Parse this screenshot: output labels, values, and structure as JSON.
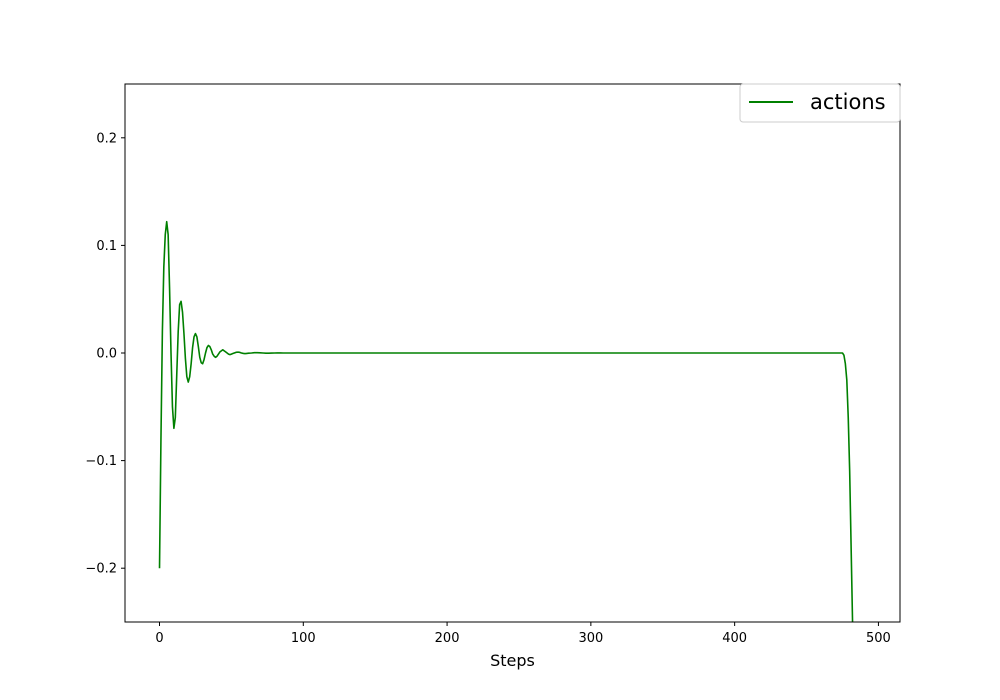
{
  "chart_data": {
    "type": "line",
    "xlabel": "Steps",
    "ylabel": "",
    "xlim": [
      -24,
      515
    ],
    "ylim": [
      -0.25,
      0.25
    ],
    "x_ticks": [
      0,
      100,
      200,
      300,
      400,
      500
    ],
    "x_tick_labels": [
      "0",
      "100",
      "200",
      "300",
      "400",
      "500"
    ],
    "y_ticks": [
      -0.2,
      -0.1,
      0.0,
      0.1,
      0.2
    ],
    "y_tick_labels": [
      "−0.2",
      "−0.1",
      "0.0",
      "0.1",
      "0.2"
    ],
    "grid": false,
    "legend_placement": "top-right",
    "series": [
      {
        "name": "actions",
        "color": "#008000",
        "x": [
          0,
          1,
          2,
          3,
          4,
          5,
          6,
          7,
          8,
          9,
          10,
          11,
          12,
          13,
          14,
          15,
          16,
          17,
          18,
          19,
          20,
          21,
          22,
          23,
          24,
          25,
          26,
          27,
          28,
          29,
          30,
          31,
          32,
          33,
          34,
          35,
          36,
          37,
          38,
          39,
          40,
          41,
          42,
          43,
          44,
          45,
          46,
          47,
          48,
          49,
          50,
          51,
          52,
          53,
          54,
          55,
          56,
          57,
          58,
          59,
          60,
          62,
          64,
          66,
          68,
          70,
          72,
          74,
          76,
          78,
          80,
          82,
          84,
          86,
          88,
          90,
          95,
          100,
          120,
          150,
          200,
          250,
          300,
          350,
          400,
          450,
          470,
          475,
          476,
          477,
          478,
          479,
          480,
          481,
          482,
          483
        ],
        "y": [
          -0.2,
          -0.08,
          0.02,
          0.08,
          0.11,
          0.122,
          0.11,
          0.06,
          0.0,
          -0.05,
          -0.07,
          -0.06,
          -0.02,
          0.02,
          0.045,
          0.048,
          0.038,
          0.018,
          -0.005,
          -0.022,
          -0.027,
          -0.022,
          -0.01,
          0.005,
          0.015,
          0.018,
          0.015,
          0.006,
          -0.004,
          -0.009,
          -0.01,
          -0.006,
          0.0,
          0.005,
          0.007,
          0.006,
          0.003,
          -0.001,
          -0.003,
          -0.004,
          -0.003,
          -0.001,
          0.001,
          0.002,
          0.003,
          0.002,
          0.001,
          0.0,
          -0.001,
          -0.0015,
          -0.001,
          -0.0005,
          0.0,
          0.0005,
          0.0008,
          0.0008,
          0.0005,
          0.0,
          -0.0003,
          -0.0005,
          -0.0005,
          -0.0002,
          0.0,
          0.0003,
          0.0003,
          0.0002,
          0.0,
          -0.0002,
          -0.0002,
          -0.0001,
          0.0,
          0.0001,
          0.0001,
          0.0,
          0.0,
          0.0,
          0.0,
          0.0,
          0.0,
          0.0,
          0.0,
          0.0,
          0.0,
          0.0,
          0.0,
          0.0,
          0.0,
          0.0,
          -0.002,
          -0.01,
          -0.025,
          -0.06,
          -0.11,
          -0.18,
          -0.25,
          -0.32
        ]
      }
    ]
  }
}
